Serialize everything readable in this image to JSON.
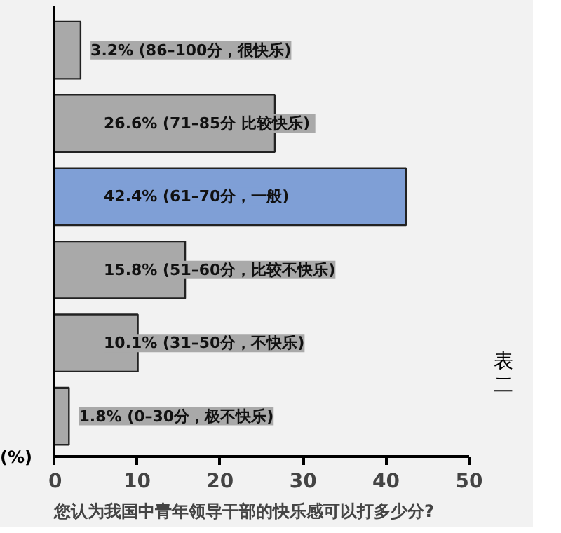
{
  "chart_data": {
    "type": "bar",
    "orientation": "horizontal",
    "title": "您认为我国中青年领导干部的快乐感可以打多少分?",
    "xlabel": "(%)",
    "categories": [
      null,
      null,
      null,
      null,
      null,
      null
    ],
    "values": [
      3.2,
      26.6,
      42.4,
      15.8,
      10.1,
      1.8
    ],
    "colors": [
      "#a9a9a9",
      "#a9a9a9",
      "#7f9fd6",
      "#a9a9a9",
      "#a9a9a9",
      "#a9a9a9"
    ],
    "value_labels": [
      "3.2% (86–100分，很快乐)",
      "26.6% (71–85分  比较快乐)",
      "42.4% (61–70分，一般)",
      "15.8% (51–60分，比较不快乐)",
      "10.1% (31–50分，不快乐)",
      "1.8% (0–30分，极不快乐)"
    ],
    "xlim": [
      0,
      50
    ],
    "xticks": [
      0,
      10,
      20,
      30,
      40,
      50
    ],
    "annotations": [
      "表二"
    ],
    "grid": false
  }
}
